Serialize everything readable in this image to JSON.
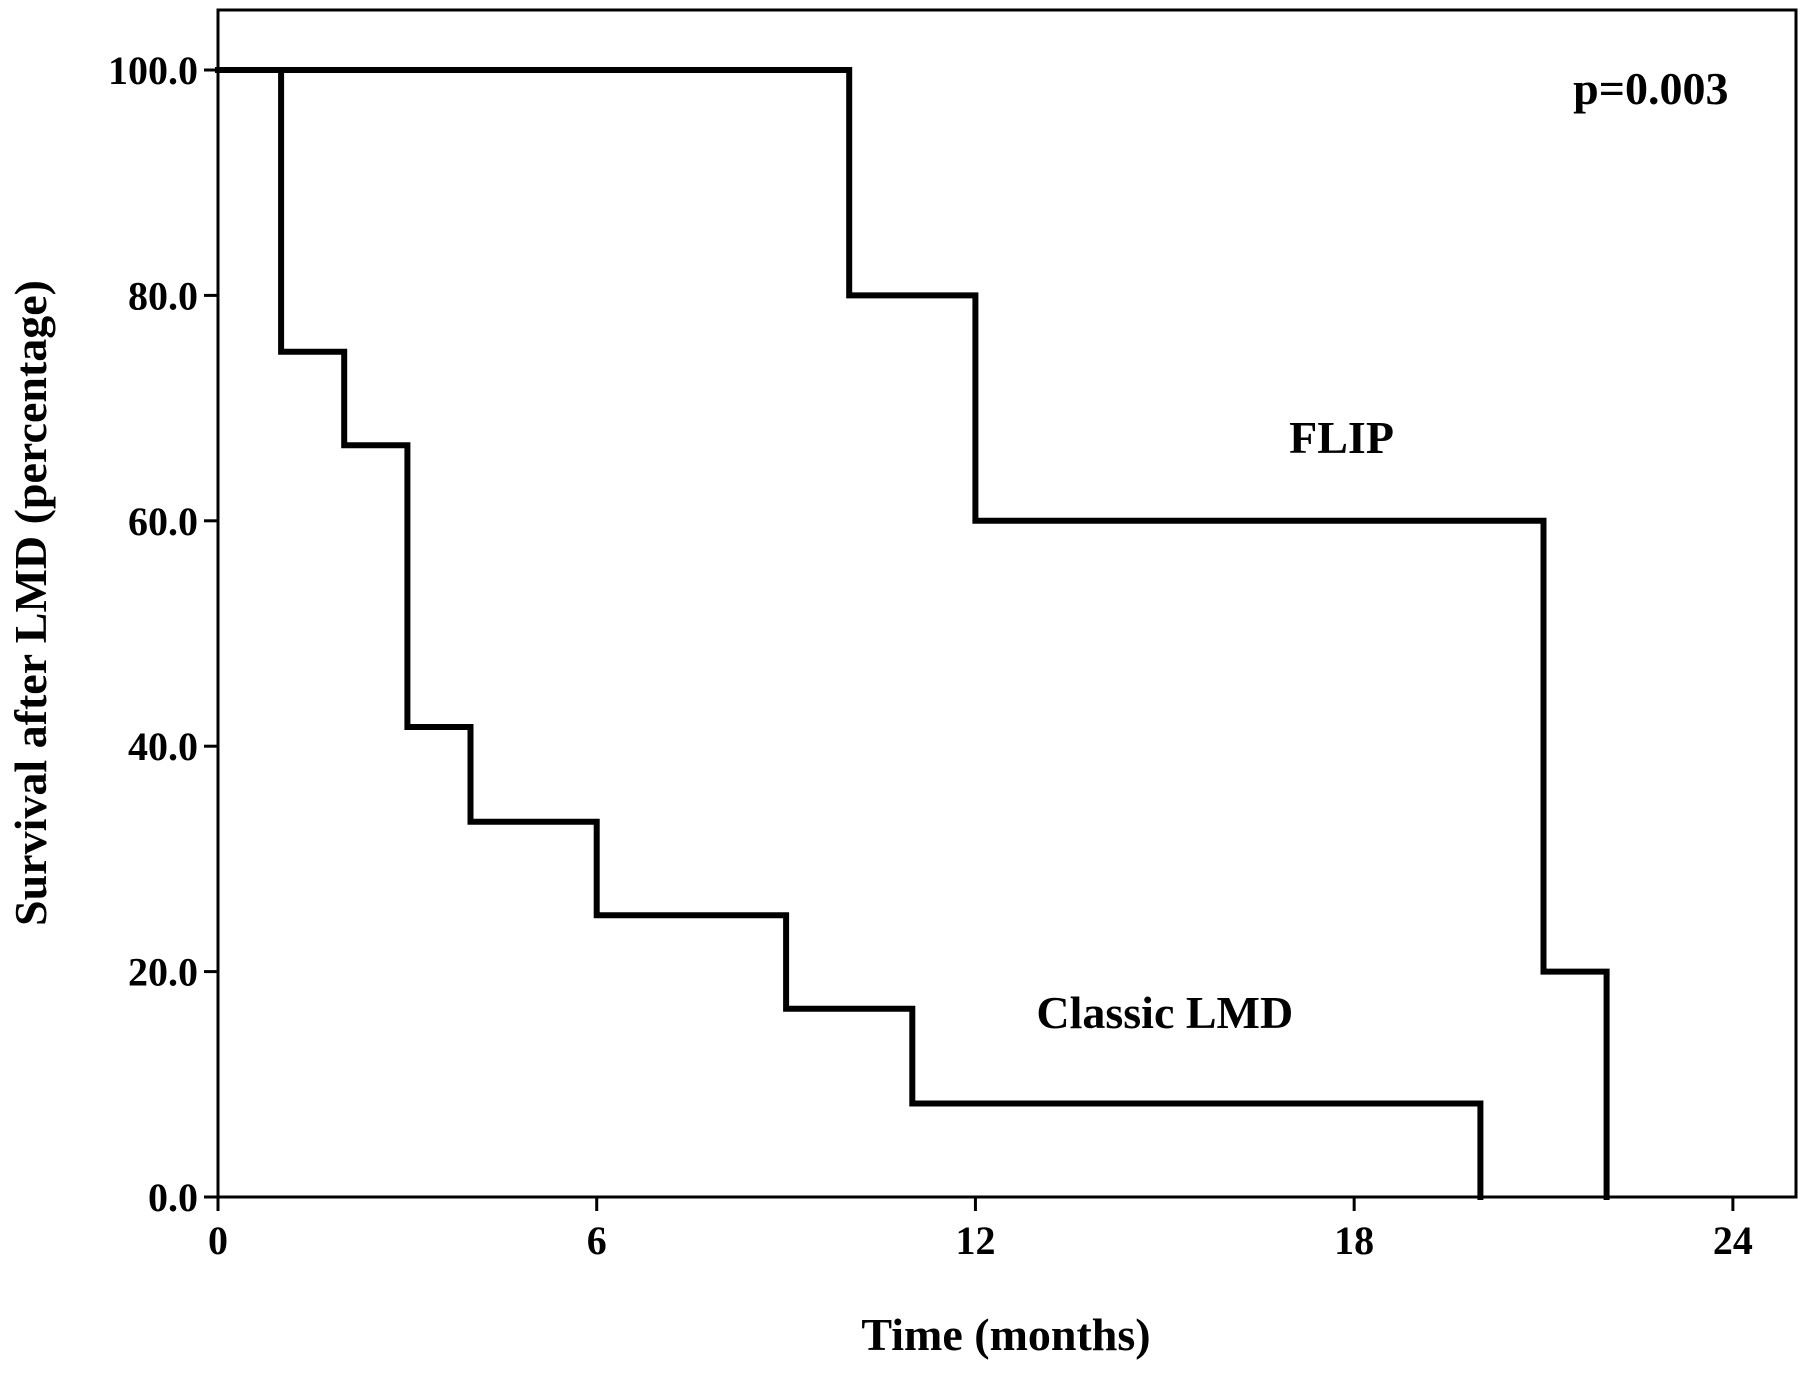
{
  "chart_data": {
    "type": "line",
    "step": true,
    "title": "",
    "xlabel": "Time (months)",
    "ylabel": "Survival after LMD (percentage)",
    "xlim": [
      0,
      25
    ],
    "ylim": [
      0,
      105
    ],
    "xticks": [
      "0",
      "6",
      "12",
      "18",
      "24"
    ],
    "xtick_values": [
      0,
      6,
      12,
      18,
      24
    ],
    "yticks": [
      "0.0",
      "20.0",
      "40.0",
      "60.0",
      "80.0",
      "100.0"
    ],
    "ytick_values": [
      0,
      20,
      40,
      60,
      80,
      100
    ],
    "grid": false,
    "annotations": [
      {
        "name": "p-value",
        "text": "p=0.003",
        "x": 22.7,
        "y": 97
      },
      {
        "name": "flip-label",
        "text": "FLIP",
        "x": 17.8,
        "y": 66
      },
      {
        "name": "classic-lmd-label",
        "text": "Classic LMD",
        "x": 15,
        "y": 15
      }
    ],
    "series": [
      {
        "key": "flip",
        "color": "#000000",
        "x": [
          0,
          10,
          10,
          12,
          12,
          21,
          21,
          22,
          22
        ],
        "y": [
          100,
          100,
          80,
          80,
          60,
          60,
          20,
          20,
          0
        ]
      },
      {
        "key": "classic-lmd",
        "color": "#000000",
        "x": [
          0,
          1,
          1,
          2,
          2,
          3,
          3,
          4,
          4,
          6,
          6,
          9,
          9,
          11,
          11,
          20,
          20
        ],
        "y": [
          100,
          100,
          75,
          75,
          66.7,
          66.7,
          41.7,
          41.7,
          33.3,
          33.3,
          25,
          25,
          16.7,
          16.7,
          8.3,
          8.3,
          0
        ]
      }
    ]
  }
}
